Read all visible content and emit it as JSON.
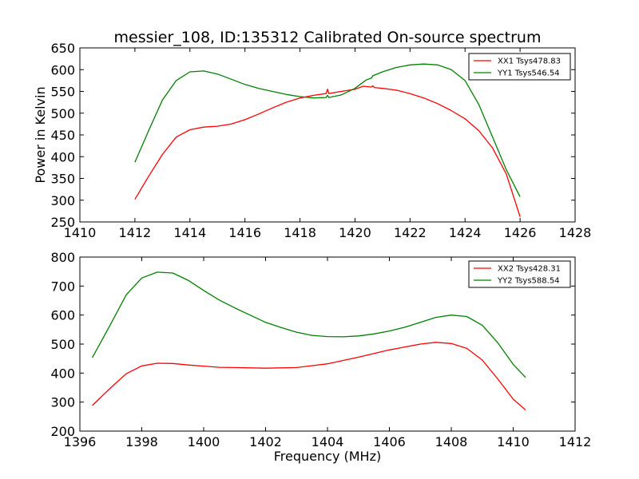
{
  "chart_data": [
    {
      "type": "line",
      "title": "messier_108, ID:135312 Calibrated On-source spectrum",
      "xlabel": "",
      "ylabel": "Power in Kelvin",
      "xlim": [
        1410,
        1428
      ],
      "ylim": [
        250,
        650
      ],
      "xticks": [
        "1410",
        "1412",
        "1414",
        "1416",
        "1418",
        "1420",
        "1422",
        "1424",
        "1426",
        "1428"
      ],
      "yticks": [
        "250",
        "300",
        "350",
        "400",
        "450",
        "500",
        "550",
        "600",
        "650"
      ],
      "legend_position": "top-right",
      "grid": false,
      "series": [
        {
          "name": "XX1 Tsys478.83",
          "color": "#ff0000",
          "points": [
            [
              1412,
              302
            ],
            [
              1412.5,
              355
            ],
            [
              1413,
              405
            ],
            [
              1413.5,
              445
            ],
            [
              1414,
              462
            ],
            [
              1414.5,
              468
            ],
            [
              1415,
              470
            ],
            [
              1415.5,
              475
            ],
            [
              1416,
              485
            ],
            [
              1416.5,
              498
            ],
            [
              1417,
              512
            ],
            [
              1417.5,
              525
            ],
            [
              1418,
              535
            ],
            [
              1418.5,
              541
            ],
            [
              1418.95,
              545
            ],
            [
              1419.0,
              555
            ],
            [
              1419.05,
              545
            ],
            [
              1419.5,
              550
            ],
            [
              1420,
              555
            ],
            [
              1420.3,
              562
            ],
            [
              1420.6,
              560
            ],
            [
              1420.65,
              563
            ],
            [
              1420.7,
              559
            ],
            [
              1421,
              557
            ],
            [
              1421.5,
              553
            ],
            [
              1422,
              545
            ],
            [
              1422.5,
              535
            ],
            [
              1423,
              522
            ],
            [
              1423.5,
              506
            ],
            [
              1424,
              487
            ],
            [
              1424.5,
              460
            ],
            [
              1425,
              420
            ],
            [
              1425.5,
              360
            ],
            [
              1426,
              262
            ]
          ]
        },
        {
          "name": "YY1 Tsys546.54",
          "color": "#008000",
          "points": [
            [
              1412,
              387
            ],
            [
              1412.5,
              460
            ],
            [
              1413,
              530
            ],
            [
              1413.5,
              575
            ],
            [
              1414,
              595
            ],
            [
              1414.5,
              597
            ],
            [
              1415,
              590
            ],
            [
              1415.5,
              578
            ],
            [
              1416,
              566
            ],
            [
              1416.5,
              557
            ],
            [
              1417,
              550
            ],
            [
              1417.5,
              543
            ],
            [
              1418,
              538
            ],
            [
              1418.5,
              535
            ],
            [
              1418.95,
              536
            ],
            [
              1419.0,
              541
            ],
            [
              1419.05,
              536
            ],
            [
              1419.5,
              542
            ],
            [
              1420,
              557
            ],
            [
              1420.4,
              576
            ],
            [
              1420.6,
              581
            ],
            [
              1420.65,
              586
            ],
            [
              1421,
              595
            ],
            [
              1421.5,
              605
            ],
            [
              1422,
              611
            ],
            [
              1422.5,
              613
            ],
            [
              1423,
              611
            ],
            [
              1423.5,
              600
            ],
            [
              1424,
              575
            ],
            [
              1424.5,
              520
            ],
            [
              1425,
              445
            ],
            [
              1425.5,
              370
            ],
            [
              1426,
              308
            ]
          ]
        }
      ]
    },
    {
      "type": "line",
      "title": "",
      "xlabel": "Frequency (MHz)",
      "ylabel": "",
      "xlim": [
        1396,
        1412
      ],
      "ylim": [
        200,
        800
      ],
      "xticks": [
        "1396",
        "1398",
        "1400",
        "1402",
        "1404",
        "1406",
        "1408",
        "1410",
        "1412"
      ],
      "yticks": [
        "200",
        "300",
        "400",
        "500",
        "600",
        "700",
        "800"
      ],
      "legend_position": "top-right",
      "grid": false,
      "series": [
        {
          "name": "XX2 Tsys428.31",
          "color": "#ff0000",
          "points": [
            [
              1396.4,
              288
            ],
            [
              1397,
              350
            ],
            [
              1397.5,
              398
            ],
            [
              1398,
              425
            ],
            [
              1398.5,
              434
            ],
            [
              1399,
              433
            ],
            [
              1399.5,
              428
            ],
            [
              1400,
              424
            ],
            [
              1400.5,
              420
            ],
            [
              1401,
              419
            ],
            [
              1402,
              417
            ],
            [
              1403,
              419
            ],
            [
              1404,
              432
            ],
            [
              1405,
              455
            ],
            [
              1406,
              480
            ],
            [
              1407,
              500
            ],
            [
              1407.5,
              506
            ],
            [
              1408,
              502
            ],
            [
              1408.5,
              485
            ],
            [
              1409,
              445
            ],
            [
              1409.5,
              380
            ],
            [
              1410,
              310
            ],
            [
              1410.4,
              273
            ]
          ]
        },
        {
          "name": "YY2 Tsys588.54",
          "color": "#008000",
          "points": [
            [
              1396.4,
              453
            ],
            [
              1397,
              570
            ],
            [
              1397.5,
              670
            ],
            [
              1398,
              728
            ],
            [
              1398.5,
              748
            ],
            [
              1399,
              745
            ],
            [
              1399.5,
              720
            ],
            [
              1400,
              685
            ],
            [
              1400.5,
              652
            ],
            [
              1401,
              625
            ],
            [
              1401.5,
              600
            ],
            [
              1402,
              575
            ],
            [
              1402.5,
              557
            ],
            [
              1403,
              541
            ],
            [
              1403.5,
              530
            ],
            [
              1404,
              526
            ],
            [
              1404.5,
              525
            ],
            [
              1405,
              528
            ],
            [
              1405.5,
              535
            ],
            [
              1406,
              545
            ],
            [
              1406.5,
              558
            ],
            [
              1407,
              575
            ],
            [
              1407.5,
              592
            ],
            [
              1408,
              600
            ],
            [
              1408.5,
              595
            ],
            [
              1409,
              565
            ],
            [
              1409.5,
              505
            ],
            [
              1410,
              430
            ],
            [
              1410.4,
              385
            ]
          ]
        }
      ]
    }
  ]
}
